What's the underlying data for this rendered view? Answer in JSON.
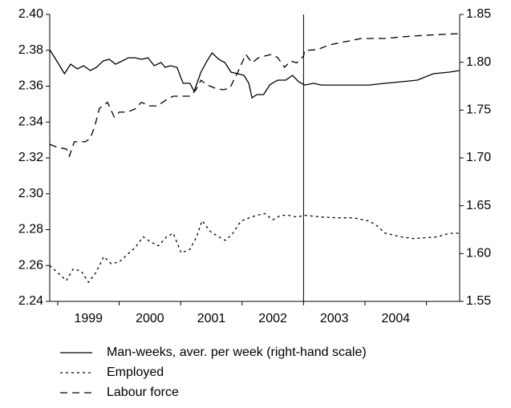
{
  "chart_data": {
    "type": "line",
    "xlim": [
      1998.87,
      2005.54
    ],
    "xticks": [
      {
        "value": 1999.5,
        "label": "1999"
      },
      {
        "value": 2000.5,
        "label": "2000"
      },
      {
        "value": 2001.5,
        "label": "2001"
      },
      {
        "value": 2002.5,
        "label": "2002"
      },
      {
        "value": 2003.5,
        "label": "2003"
      },
      {
        "value": 2004.5,
        "label": "2004"
      }
    ],
    "xminorticks": [
      1999,
      2000,
      2001,
      2002,
      2003,
      2004,
      2005
    ],
    "vline": 2003.0,
    "ylim": [
      2.24,
      2.4
    ],
    "yticks": [
      2.24,
      2.26,
      2.28,
      {
        "value": 2.3,
        "label": "2.30"
      },
      2.32,
      2.34,
      2.36,
      2.38,
      {
        "value": 2.4,
        "label": "2.40"
      }
    ],
    "y2lim": [
      1.55,
      1.85
    ],
    "y2ticks": [
      1.55,
      {
        "value": 1.6,
        "label": "1.60"
      },
      1.65,
      {
        "value": 1.7,
        "label": "1.70"
      },
      1.75,
      {
        "value": 1.8,
        "label": "1.80"
      },
      1.85
    ],
    "series": [
      {
        "name": "Man-weeks, aver. per week (right-hand scale)",
        "color": "#000000",
        "style": "solid",
        "axis": "y2",
        "x": [
          1998.87,
          1999.0,
          1999.11,
          1999.21,
          1999.32,
          1999.42,
          1999.53,
          1999.63,
          1999.74,
          1999.84,
          1999.94,
          2000.05,
          2000.15,
          2000.26,
          2000.36,
          2000.47,
          2000.57,
          2000.68,
          2000.75,
          2000.83,
          2000.94,
          2001.04,
          2001.15,
          2001.22,
          2001.33,
          2001.43,
          2001.51,
          2001.62,
          2001.72,
          2001.82,
          2001.93,
          2002.03,
          2002.11,
          2002.16,
          2002.24,
          2002.35,
          2002.45,
          2002.53,
          2002.58,
          2002.71,
          2002.82,
          2002.92,
          2003.02,
          2003.16,
          2003.29,
          2003.55,
          2003.81,
          2004.07,
          2004.33,
          2004.59,
          2004.85,
          2005.11,
          2005.37,
          2005.54
        ],
        "values": [
          1.8131,
          1.7997,
          1.788,
          1.798,
          1.793,
          1.7964,
          1.7913,
          1.7947,
          1.8014,
          1.8031,
          1.798,
          1.8014,
          1.8047,
          1.8047,
          1.8031,
          1.8047,
          1.7964,
          1.7997,
          1.7947,
          1.7964,
          1.7947,
          1.778,
          1.778,
          1.7696,
          1.7897,
          1.8014,
          1.8098,
          1.8031,
          1.7997,
          1.7897,
          1.788,
          1.7863,
          1.778,
          1.7628,
          1.7662,
          1.7662,
          1.7763,
          1.7796,
          1.7813,
          1.7813,
          1.7863,
          1.7796,
          1.7762,
          1.778,
          1.7762,
          1.7762,
          1.7762,
          1.7762,
          1.778,
          1.7796,
          1.7813,
          1.788,
          1.7897,
          1.7913
        ]
      },
      {
        "name": "Employed",
        "color": "#000000",
        "style": "dotted",
        "x": [
          1998.87,
          1999.0,
          1999.14,
          1999.25,
          1999.38,
          1999.5,
          1999.62,
          1999.75,
          1999.87,
          2000.0,
          2000.13,
          2000.26,
          2000.39,
          2000.52,
          2000.64,
          2000.77,
          2000.88,
          2001.01,
          2001.15,
          2001.26,
          2001.35,
          2001.48,
          2001.62,
          2001.73,
          2001.85,
          2001.98,
          2002.11,
          2002.24,
          2002.37,
          2002.5,
          2002.63,
          2002.76,
          2002.89,
          2003.02,
          2003.29,
          2003.55,
          2003.81,
          2004.07,
          2004.2,
          2004.33,
          2004.59,
          2004.79,
          2004.98,
          2005.18,
          2005.37,
          2005.54
        ],
        "values": [
          2.26,
          2.256,
          2.2516,
          2.258,
          2.257,
          2.2507,
          2.256,
          2.265,
          2.261,
          2.262,
          2.266,
          2.27,
          2.276,
          2.273,
          2.271,
          2.276,
          2.278,
          2.267,
          2.269,
          2.276,
          2.285,
          2.279,
          2.276,
          2.274,
          2.278,
          2.2848,
          2.2865,
          2.288,
          2.289,
          2.2855,
          2.288,
          2.288,
          2.287,
          2.288,
          2.287,
          2.2866,
          2.2866,
          2.2848,
          2.282,
          2.278,
          2.276,
          2.275,
          2.2755,
          2.276,
          2.278,
          2.278
        ]
      },
      {
        "name": "Labour force",
        "color": "#000000",
        "style": "dashed",
        "x": [
          1998.87,
          1999.0,
          1999.14,
          1999.19,
          1999.27,
          1999.45,
          1999.53,
          1999.6,
          1999.68,
          1999.81,
          1999.92,
          2000.0,
          2000.13,
          2000.26,
          2000.36,
          2000.49,
          2000.62,
          2000.75,
          2000.88,
          2001.01,
          2001.15,
          2001.25,
          2001.33,
          2001.43,
          2001.56,
          2001.69,
          2001.8,
          2001.93,
          2002.06,
          2002.16,
          2002.27,
          2002.37,
          2002.48,
          2002.58,
          2002.69,
          2002.79,
          2002.89,
          2003.0,
          2003.02,
          2003.22,
          2003.42,
          2003.68,
          2003.94,
          2004.33,
          2004.59,
          2004.98,
          2005.54
        ],
        "values": [
          2.3276,
          2.3258,
          2.325,
          2.321,
          2.329,
          2.329,
          2.331,
          2.3374,
          2.3477,
          2.351,
          2.3428,
          2.3455,
          2.3455,
          2.3473,
          2.351,
          2.349,
          2.349,
          2.352,
          2.3544,
          2.3544,
          2.3544,
          2.358,
          2.3633,
          2.3607,
          2.3589,
          2.358,
          2.3589,
          2.3678,
          2.3777,
          2.373,
          2.3759,
          2.3768,
          2.3777,
          2.3759,
          2.3705,
          2.374,
          2.373,
          2.3768,
          2.38,
          2.3803,
          2.383,
          2.3848,
          2.3866,
          2.3866,
          2.3875,
          2.3884,
          2.3893
        ]
      }
    ]
  }
}
